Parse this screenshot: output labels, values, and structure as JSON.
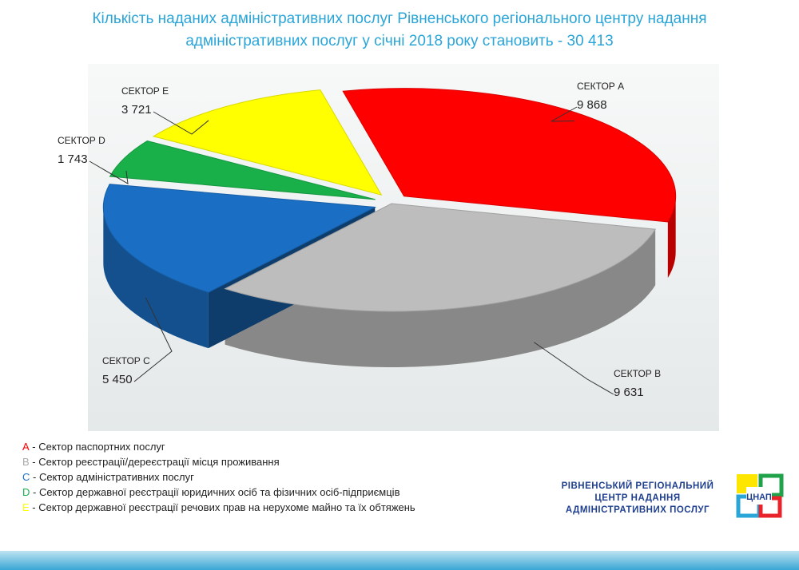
{
  "title": {
    "line1": "Кількість наданих адміністративних послуг Рівненського регіонального центру надання",
    "line2": "адміністративних послуг у січні 2018 року становить - 30 413"
  },
  "chart_data": {
    "type": "pie",
    "title": "Кількість наданих адміністративних послуг Рівненського регіонального центру надання адміністративних послуг у січні 2018 року становить - 30 413",
    "total": 30413,
    "three_d": true,
    "slices": [
      {
        "label": "СЕКТОР А",
        "value": 9868,
        "value_text": "9 868",
        "color": "#ff0000",
        "exploded": true
      },
      {
        "label": "СЕКТОР В",
        "value": 9631,
        "value_text": "9 631",
        "color": "#bdbdbd",
        "exploded": false
      },
      {
        "label": "СЕКТОР С",
        "value": 5450,
        "value_text": "5 450",
        "color": "#1a6fc4",
        "exploded": true
      },
      {
        "label": "СЕКТОР D",
        "value": 1743,
        "value_text": "1 743",
        "color": "#19b04a",
        "exploded": true
      },
      {
        "label": "СЕКТОР Е",
        "value": 3721,
        "value_text": "3 721",
        "color": "#ffff00",
        "exploded": true
      }
    ]
  },
  "legend": [
    {
      "code": "А",
      "text": " - Сектор паспортних послуг",
      "color": "#ff0000"
    },
    {
      "code": "В",
      "text": " - Сектор реєстрації/дереєстрації місця проживання",
      "color": "#a9a9a9"
    },
    {
      "code": "С",
      "text": " - Сектор адміністративних послуг",
      "color": "#1a6fc4"
    },
    {
      "code": "D",
      "text": " - Сектор державної реєстрації юридичних осіб та фізичних осіб-підприємців",
      "color": "#19b04a"
    },
    {
      "code": "Е",
      "text": " - Сектор державної реєстрації речових прав на нерухоме майно та їх обтяжень",
      "color": "#ffff00"
    }
  ],
  "org": {
    "line1": "РІВНЕНСЬКИЙ РЕГІОНАЛЬНИЙ",
    "line2": "ЦЕНТР НАДАННЯ",
    "line3": "АДМІНІСТРАТИВНИХ ПОСЛУГ",
    "logo_text": "ЦНАП"
  }
}
